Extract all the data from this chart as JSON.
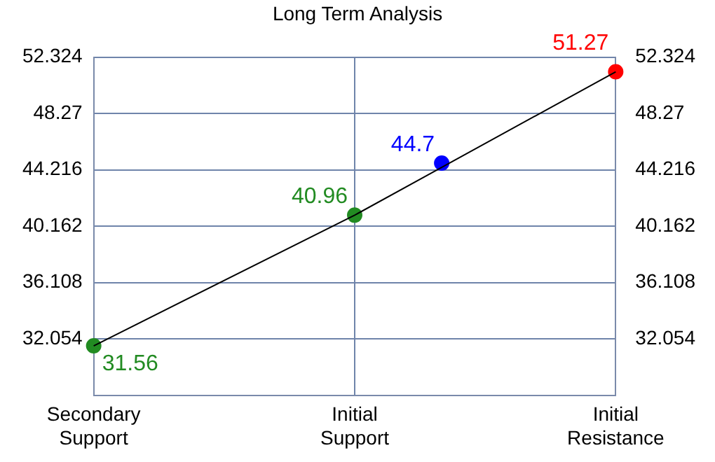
{
  "chart_data": {
    "type": "line",
    "title": "Long Term Analysis",
    "categories": [
      "Secondary Support",
      null,
      null,
      "Initial Support",
      null,
      null,
      "Initial Resistance"
    ],
    "ylim": [
      28,
      52.324
    ],
    "yticks": [
      32.054,
      36.108,
      40.162,
      44.216,
      48.27,
      52.324
    ],
    "y2lim": [
      28,
      52.324
    ],
    "y2ticks": [
      32.054,
      36.108,
      40.162,
      44.216,
      48.27,
      52.324
    ],
    "grid": true,
    "series": [
      {
        "type": "line",
        "color": "#000000",
        "marker": "none",
        "values": [
          31.56,
          null,
          null,
          40.96,
          null,
          null,
          51.27
        ]
      },
      {
        "type": "scatter",
        "marker": "circle",
        "colors": [
          "#228b22",
          "#228b22",
          "#228b22",
          "#228b22",
          "#0000ff",
          "#0000ff",
          "#ff0000"
        ],
        "values": [
          31.56,
          null,
          null,
          40.96,
          44.7,
          null,
          51.27
        ],
        "value_labels": [
          "31.56",
          null,
          null,
          "40.96",
          "44.7",
          null,
          "51.27"
        ]
      }
    ]
  }
}
